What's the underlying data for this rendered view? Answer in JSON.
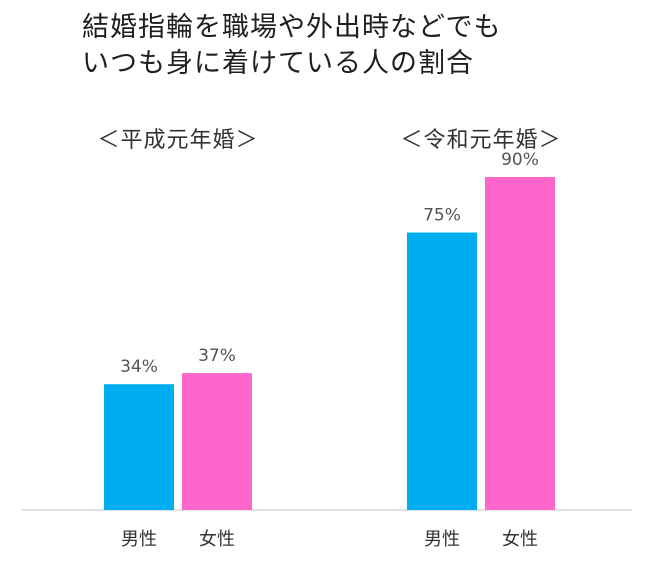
{
  "chart_data": {
    "type": "bar",
    "title_lines": [
      "結婚指輪を職場や外出時などでも",
      "いつも身に着けている人の割合"
    ],
    "ylim": [
      0,
      100
    ],
    "unit": "%",
    "groups": [
      {
        "name": "＜平成元年婚＞",
        "categories": [
          "男性",
          "女性"
        ],
        "values": [
          34,
          37
        ],
        "value_labels": [
          "34%",
          "37%"
        ]
      },
      {
        "name": "＜令和元年婚＞",
        "categories": [
          "男性",
          "女性"
        ],
        "values": [
          75,
          90
        ],
        "value_labels": [
          "75%",
          "90%"
        ]
      }
    ],
    "colors": {
      "male": "#00adee",
      "female": "#ff66cc"
    },
    "grid": false,
    "legend": "none"
  }
}
